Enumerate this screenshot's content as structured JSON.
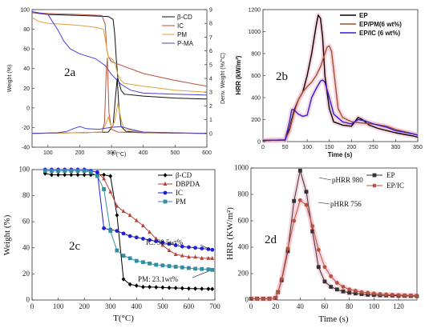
{
  "chart_data": [
    {
      "panel": "2a",
      "type": "line",
      "xlabel": "T (°C)",
      "ylabel": "Weight (%)",
      "y2label": "Deriv. Weight (%/°C)",
      "xlim": [
        50,
        600
      ],
      "ylim": [
        -40,
        100
      ],
      "y2lim": [
        -1,
        9
      ],
      "xticks": [
        100,
        200,
        300,
        400,
        500,
        600
      ],
      "yticks": [
        -40,
        -20,
        0,
        20,
        40,
        60,
        80,
        100
      ],
      "y2ticks": [
        0,
        1,
        2,
        3,
        4,
        5,
        6,
        7,
        8,
        9
      ],
      "legend": {
        "placement": "top-right"
      },
      "series": [
        {
          "name": "β-CD",
          "color": "#111111",
          "kind": "weight",
          "x": [
            50,
            100,
            200,
            290,
            305,
            310,
            315,
            320,
            330,
            340,
            400,
            500,
            600
          ],
          "y": [
            97,
            95,
            94,
            93,
            90,
            75,
            50,
            30,
            18,
            14,
            12,
            10,
            9
          ]
        },
        {
          "name": "IC",
          "color": "#b8523c",
          "kind": "weight",
          "x": [
            50,
            100,
            200,
            270,
            280,
            285,
            290,
            300,
            400,
            500,
            600
          ],
          "y": [
            97,
            96,
            95,
            94,
            85,
            60,
            52,
            47,
            35,
            28,
            22
          ]
        },
        {
          "name": "PM",
          "color": "#e0a23a",
          "kind": "weight",
          "x": [
            50,
            70,
            100,
            150,
            200,
            250,
            275,
            280,
            290,
            300,
            310,
            320,
            330,
            340,
            400,
            500,
            600
          ],
          "y": [
            92,
            88,
            86,
            85,
            84,
            82,
            80,
            70,
            52,
            50,
            46,
            34,
            28,
            25,
            22,
            18,
            16
          ]
        },
        {
          "name": "P-MA",
          "color": "#4b3fd2",
          "kind": "weight",
          "x": [
            50,
            100,
            130,
            150,
            170,
            200,
            250,
            280,
            300,
            330,
            360,
            400,
            500,
            600
          ],
          "y": [
            98,
            95,
            80,
            68,
            60,
            55,
            50,
            43,
            34,
            24,
            18,
            15,
            14,
            13
          ]
        },
        {
          "name": "β-CD DTG",
          "color": "#111111",
          "kind": "deriv",
          "x": [
            50,
            200,
            290,
            305,
            312,
            318,
            323,
            330,
            345,
            400,
            600
          ],
          "y": [
            0.0,
            0.05,
            0.1,
            0.6,
            2.5,
            4.0,
            2.0,
            0.5,
            0.15,
            0.05,
            0.0
          ]
        },
        {
          "name": "IC DTG",
          "color": "#b8523c",
          "kind": "deriv",
          "x": [
            50,
            200,
            270,
            278,
            283,
            287,
            292,
            300,
            320,
            400,
            600
          ],
          "y": [
            0.0,
            0.05,
            0.1,
            0.8,
            4.3,
            5.5,
            1.5,
            0.3,
            0.1,
            0.05,
            0.0
          ]
        },
        {
          "name": "PM DTG",
          "color": "#e0a23a",
          "kind": "deriv",
          "x": [
            50,
            200,
            270,
            280,
            290,
            300,
            310,
            320,
            330,
            340,
            400,
            600
          ],
          "y": [
            0.0,
            0.05,
            0.1,
            0.6,
            1.2,
            0.4,
            0.9,
            2.2,
            1.0,
            0.3,
            0.1,
            0.0
          ]
        },
        {
          "name": "P-MA DTG",
          "color": "#4b3fd2",
          "kind": "deriv",
          "x": [
            50,
            130,
            160,
            180,
            200,
            220,
            260,
            300,
            330,
            360,
            400,
            600
          ],
          "y": [
            0.0,
            0.05,
            0.15,
            0.35,
            0.5,
            0.35,
            0.3,
            0.45,
            0.5,
            0.3,
            0.1,
            0.0
          ]
        }
      ]
    },
    {
      "panel": "2b",
      "type": "line",
      "xlabel": "Time (s)",
      "ylabel": "HRR (kW/m²)",
      "xlim": [
        0,
        350
      ],
      "ylim": [
        0,
        1200
      ],
      "xticks": [
        0,
        50,
        100,
        150,
        200,
        250,
        300,
        350
      ],
      "yticks": [
        0,
        200,
        400,
        600,
        800,
        1000,
        1200
      ],
      "legend": {
        "placement": "top-right"
      },
      "series": [
        {
          "name": "EP",
          "color": "#000000",
          "x": [
            0,
            50,
            60,
            70,
            80,
            90,
            100,
            110,
            120,
            125,
            130,
            135,
            140,
            150,
            160,
            180,
            200,
            215,
            225,
            240,
            260,
            300,
            340,
            350
          ],
          "y": [
            10,
            15,
            120,
            280,
            380,
            450,
            600,
            800,
            1050,
            1150,
            1120,
            950,
            600,
            300,
            180,
            150,
            140,
            220,
            200,
            150,
            120,
            80,
            50,
            40
          ]
        },
        {
          "name": "EP/PM(6 wt%)",
          "color": "#a0522d",
          "x": [
            0,
            50,
            60,
            70,
            80,
            90,
            100,
            110,
            120,
            130,
            140,
            145,
            150,
            155,
            160,
            170,
            180,
            200,
            220,
            250,
            280,
            300,
            340,
            350
          ],
          "y": [
            10,
            15,
            100,
            260,
            380,
            450,
            500,
            540,
            600,
            680,
            800,
            860,
            870,
            820,
            650,
            300,
            220,
            180,
            170,
            160,
            140,
            110,
            70,
            60
          ]
        },
        {
          "name": "EP/IC (6 wt%)",
          "color": "#2b1fd6",
          "x": [
            0,
            50,
            60,
            65,
            70,
            80,
            90,
            100,
            110,
            120,
            130,
            135,
            140,
            150,
            160,
            180,
            200,
            215,
            230,
            250,
            280,
            300,
            340,
            350
          ],
          "y": [
            10,
            15,
            180,
            290,
            290,
            250,
            230,
            240,
            400,
            480,
            550,
            560,
            540,
            400,
            250,
            180,
            160,
            200,
            190,
            160,
            130,
            100,
            70,
            60
          ]
        }
      ]
    },
    {
      "panel": "2c",
      "type": "line",
      "xlabel": "T(°C)",
      "ylabel": "Weight (%)",
      "xlim": [
        0,
        700
      ],
      "ylim": [
        0,
        100
      ],
      "xticks": [
        0,
        100,
        200,
        300,
        400,
        500,
        600,
        700
      ],
      "yticks": [
        0,
        20,
        40,
        60,
        80,
        100
      ],
      "legend": {
        "placement": "top-right"
      },
      "annotations": [
        "IC: 38.5wt%",
        "PM: 23.1wt%"
      ],
      "series": [
        {
          "name": "β-CD",
          "color": "#000000",
          "marker": "diamond",
          "x": [
            50,
            75,
            100,
            125,
            150,
            175,
            200,
            225,
            250,
            275,
            300,
            325,
            350,
            375,
            400,
            425,
            450,
            475,
            500,
            525,
            550,
            575,
            600,
            625,
            650,
            675,
            690
          ],
          "y": [
            97,
            96,
            96,
            96,
            96,
            96,
            96,
            96,
            96,
            96,
            95,
            65,
            16,
            12,
            11,
            10,
            10,
            9.8,
            9.6,
            9.4,
            9.2,
            9,
            8.8,
            8.7,
            8.6,
            8.5,
            8.4
          ]
        },
        {
          "name": "DBPDA",
          "color": "#b8423a",
          "marker": "triangle",
          "x": [
            50,
            75,
            100,
            125,
            150,
            175,
            200,
            225,
            250,
            275,
            300,
            325,
            350,
            375,
            400,
            425,
            450,
            475,
            500,
            525,
            550,
            575,
            600,
            625,
            650,
            675,
            690
          ],
          "y": [
            100,
            100,
            100,
            100,
            100,
            100,
            100,
            99,
            98,
            93,
            83,
            72,
            68,
            65,
            61,
            57,
            52,
            47,
            42,
            38,
            35,
            34,
            33,
            33,
            32,
            32,
            32
          ]
        },
        {
          "name": "IC",
          "color": "#1f1fd8",
          "marker": "circle",
          "x": [
            50,
            75,
            100,
            125,
            150,
            175,
            200,
            225,
            250,
            275,
            300,
            325,
            350,
            375,
            400,
            425,
            450,
            475,
            500,
            525,
            550,
            575,
            600,
            625,
            650,
            675,
            690
          ],
          "y": [
            100,
            100,
            100,
            100,
            100,
            100,
            100,
            99,
            98,
            55,
            54,
            53,
            51,
            49,
            48,
            47,
            46,
            45,
            44,
            43,
            42,
            41,
            40.5,
            40,
            39.5,
            39,
            38.5
          ]
        },
        {
          "name": "PM",
          "color": "#2f8ea0",
          "marker": "square",
          "x": [
            50,
            75,
            100,
            125,
            150,
            175,
            200,
            225,
            250,
            275,
            300,
            325,
            350,
            375,
            400,
            425,
            450,
            475,
            500,
            525,
            550,
            575,
            600,
            625,
            650,
            675,
            690
          ],
          "y": [
            99,
            99,
            99,
            99,
            99,
            99,
            99,
            98,
            95,
            85,
            53,
            38,
            34,
            32,
            30,
            29,
            28,
            27,
            26.5,
            26,
            25.5,
            25,
            24.5,
            24,
            23.8,
            23.5,
            23.1
          ]
        }
      ]
    },
    {
      "panel": "2d",
      "type": "line",
      "xlabel": "Time (s)",
      "ylabel": "HRR (KW/m²)",
      "xlim": [
        0,
        135
      ],
      "ylim": [
        0,
        1000
      ],
      "xticks": [
        0,
        20,
        40,
        60,
        80,
        100,
        120
      ],
      "yticks": [
        0,
        200,
        400,
        600,
        800,
        1000
      ],
      "legend": {
        "placement": "top-right"
      },
      "annotations": [
        "pHRR 980",
        "pHRR 756"
      ],
      "series": [
        {
          "name": "EP",
          "color": "#333333",
          "marker": "square",
          "x": [
            0,
            5,
            10,
            15,
            20,
            22,
            25,
            30,
            35,
            40,
            45,
            50,
            55,
            60,
            65,
            70,
            75,
            80,
            85,
            90,
            95,
            100,
            105,
            110,
            115,
            120,
            125,
            130,
            135
          ],
          "y": [
            10,
            10,
            10,
            10,
            15,
            60,
            150,
            370,
            750,
            980,
            820,
            520,
            250,
            140,
            100,
            80,
            65,
            55,
            50,
            45,
            40,
            38,
            36,
            35,
            34,
            33,
            32,
            31,
            30
          ]
        },
        {
          "name": "EP/IC",
          "color": "#b8523c",
          "marker": "circle",
          "x": [
            0,
            5,
            10,
            15,
            20,
            22,
            25,
            30,
            35,
            40,
            45,
            50,
            55,
            60,
            65,
            70,
            75,
            80,
            85,
            90,
            95,
            100,
            105,
            110,
            115,
            120,
            125,
            130,
            135
          ],
          "y": [
            10,
            10,
            10,
            10,
            15,
            60,
            160,
            390,
            600,
            756,
            720,
            560,
            380,
            250,
            180,
            130,
            100,
            80,
            70,
            60,
            55,
            50,
            45,
            42,
            40,
            38,
            36,
            35,
            34
          ]
        }
      ]
    }
  ],
  "labels": {
    "a": {
      "panel": "2a",
      "ylabel": "Weight (%)",
      "y2label": "Deriv. Weight (%/°C)",
      "xlabel": "T (°C)",
      "yticks": [
        "-40",
        "-20",
        "0",
        "20",
        "40",
        "60",
        "80",
        "100"
      ],
      "y2ticks": [
        "0",
        "1",
        "2",
        "3",
        "4",
        "5",
        "6",
        "7",
        "8",
        "9"
      ],
      "xticks": [
        "100",
        "200",
        "300",
        "400",
        "500",
        "600"
      ],
      "legend": [
        "β-CD",
        "IC",
        "PM",
        "P-MA"
      ]
    },
    "b": {
      "panel": "2b",
      "ylabel": "HRR (kW/m²)",
      "xlabel": "Time (s)",
      "yticks": [
        "0",
        "200",
        "400",
        "600",
        "800",
        "1000",
        "1200"
      ],
      "xticks": [
        "0",
        "50",
        "100",
        "150",
        "200",
        "250",
        "300",
        "350"
      ],
      "legend": [
        "EP",
        "EP/PM(6 wt%)",
        "EP/IC (6 wt%)"
      ]
    },
    "c": {
      "panel": "2c",
      "ylabel": "Weight (%)",
      "xlabel": "T(°C)",
      "yticks": [
        "0",
        "20",
        "40",
        "60",
        "80",
        "100"
      ],
      "xticks": [
        "0",
        "100",
        "200",
        "300",
        "400",
        "500",
        "600",
        "700"
      ],
      "legend": [
        "β-CD",
        "DBPDA",
        "IC",
        "PM"
      ],
      "ann1": "IC: 38.5wt%",
      "ann2": "PM: 23.1wt%"
    },
    "d": {
      "panel": "2d",
      "ylabel": "HRR (KW/m²)",
      "xlabel": "Time (s)",
      "yticks": [
        "0",
        "200",
        "400",
        "600",
        "800",
        "1000"
      ],
      "xticks": [
        "0",
        "20",
        "40",
        "60",
        "80",
        "100",
        "120"
      ],
      "legend": [
        "EP",
        "EP/IC"
      ],
      "ann1": "pHRR 980",
      "ann2": "pHRR 756"
    }
  }
}
